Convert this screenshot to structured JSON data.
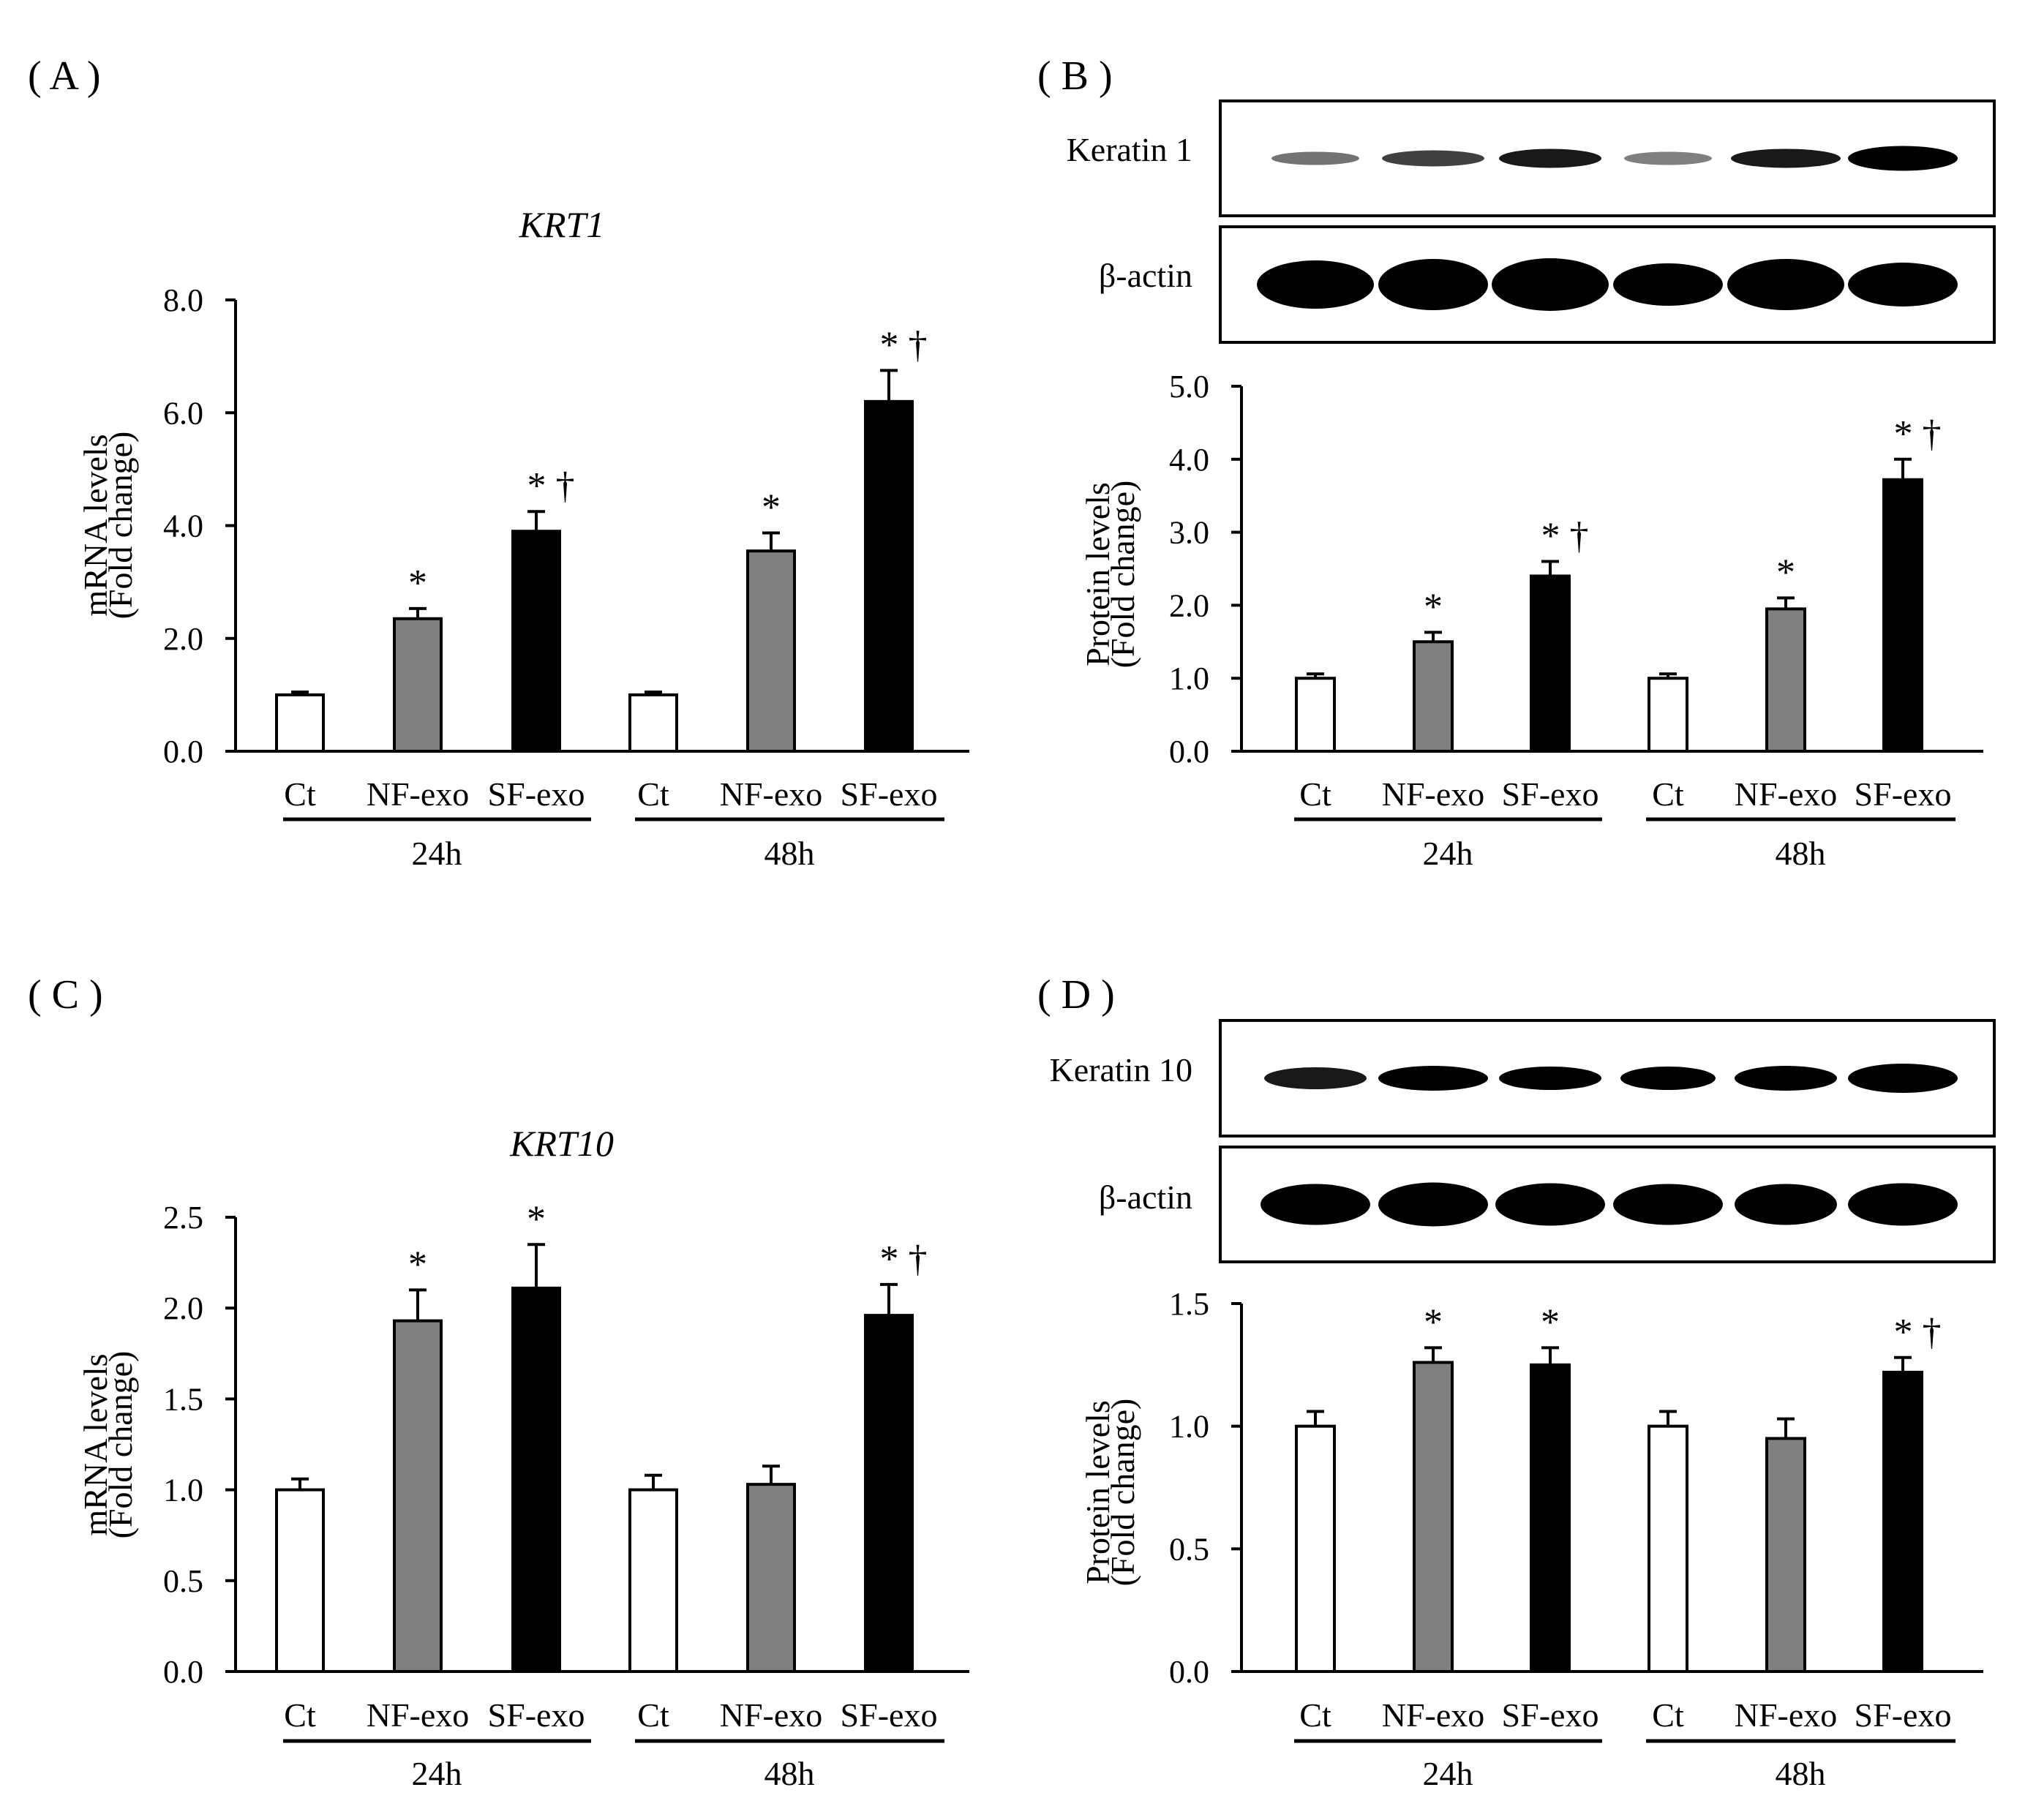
{
  "chart_data": [
    {
      "panel": "( A )",
      "type": "bar",
      "title": "KRT1",
      "ylabel": [
        "mRNA levels",
        "(Fold change)"
      ],
      "yticks": [
        "0.0",
        "2.0",
        "4.0",
        "6.0",
        "8.0"
      ],
      "ylim": [
        0,
        8
      ],
      "categories": [
        "Ct",
        "NF-exo",
        "SF-exo",
        "Ct",
        "NF-exo",
        "SF-exo"
      ],
      "groups": [
        "24h",
        "48h"
      ],
      "values": [
        1.0,
        2.35,
        3.9,
        1.0,
        3.55,
        6.2
      ],
      "errors": [
        0.05,
        0.18,
        0.35,
        0.05,
        0.32,
        0.55
      ],
      "fills": [
        "#ffffff",
        "#808080",
        "#000000",
        "#ffffff",
        "#808080",
        "#000000"
      ],
      "marks": [
        "",
        "*",
        "* †",
        "",
        "*",
        "* †"
      ]
    },
    {
      "panel": "( B )",
      "type": "bar",
      "blot": {
        "rows": [
          "Keratin 1",
          "β-actin"
        ]
      },
      "ylabel": [
        "Protein levels",
        "(Fold change)"
      ],
      "yticks": [
        "0.0",
        "1.0",
        "2.0",
        "3.0",
        "4.0",
        "5.0"
      ],
      "ylim": [
        0,
        5
      ],
      "categories": [
        "Ct",
        "NF-exo",
        "SF-exo",
        "Ct",
        "NF-exo",
        "SF-exo"
      ],
      "groups": [
        "24h",
        "48h"
      ],
      "values": [
        1.0,
        1.5,
        2.4,
        1.0,
        1.95,
        3.72
      ],
      "errors": [
        0.06,
        0.13,
        0.2,
        0.06,
        0.15,
        0.28
      ],
      "fills": [
        "#ffffff",
        "#808080",
        "#000000",
        "#ffffff",
        "#808080",
        "#000000"
      ],
      "marks": [
        "",
        "*",
        "* †",
        "",
        "*",
        "* †"
      ]
    },
    {
      "panel": "( C )",
      "type": "bar",
      "title": "KRT10",
      "ylabel": [
        "mRNA levels",
        "(Fold change)"
      ],
      "yticks": [
        "0.0",
        "0.5",
        "1.0",
        "1.5",
        "2.0",
        "2.5"
      ],
      "ylim": [
        0,
        2.5
      ],
      "categories": [
        "Ct",
        "NF-exo",
        "SF-exo",
        "Ct",
        "NF-exo",
        "SF-exo"
      ],
      "groups": [
        "24h",
        "48h"
      ],
      "values": [
        1.0,
        1.93,
        2.11,
        1.0,
        1.03,
        1.96
      ],
      "errors": [
        0.06,
        0.17,
        0.24,
        0.08,
        0.1,
        0.17
      ],
      "fills": [
        "#ffffff",
        "#808080",
        "#000000",
        "#ffffff",
        "#808080",
        "#000000"
      ],
      "marks": [
        "",
        "*",
        "*",
        "",
        "",
        "* †"
      ]
    },
    {
      "panel": "( D )",
      "type": "bar",
      "blot": {
        "rows": [
          "Keratin 10",
          "β-actin"
        ]
      },
      "ylabel": [
        "Protein levels",
        "(Fold change)"
      ],
      "yticks": [
        "0.0",
        "0.5",
        "1.0",
        "1.5"
      ],
      "ylim": [
        0,
        1.5
      ],
      "categories": [
        "Ct",
        "NF-exo",
        "SF-exo",
        "Ct",
        "NF-exo",
        "SF-exo"
      ],
      "groups": [
        "24h",
        "48h"
      ],
      "values": [
        1.0,
        1.26,
        1.25,
        1.0,
        0.95,
        1.22
      ],
      "errors": [
        0.06,
        0.06,
        0.07,
        0.06,
        0.08,
        0.06
      ],
      "fills": [
        "#ffffff",
        "#808080",
        "#000000",
        "#ffffff",
        "#808080",
        "#000000"
      ],
      "marks": [
        "",
        "*",
        "*",
        "",
        "",
        "* †"
      ]
    }
  ]
}
